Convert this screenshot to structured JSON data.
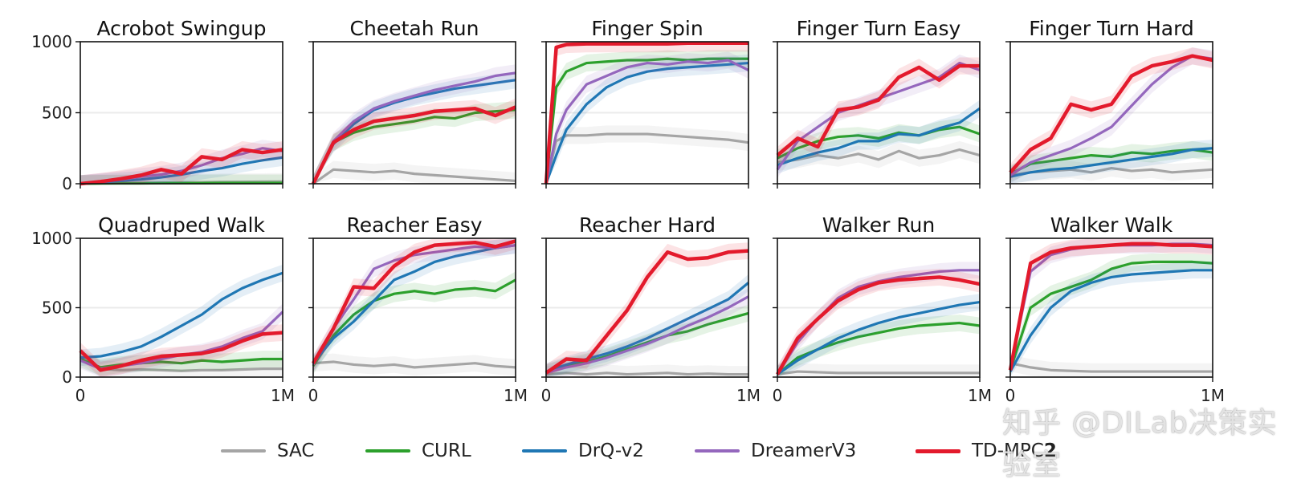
{
  "watermark": "知乎 @DILab决策实验室",
  "legend": [
    {
      "label": "SAC",
      "color": "#a5a5a5"
    },
    {
      "label": "CURL",
      "color": "#2ca02c"
    },
    {
      "label": "DrQ-v2",
      "color": "#1f77b4"
    },
    {
      "label": "DreamerV3",
      "color": "#9467bd"
    },
    {
      "label": "TD-MPC",
      "bold_suffix": "2",
      "color": "#e31a2c"
    }
  ],
  "chart_data": [
    {
      "type": "line",
      "title": "Acrobot Swingup",
      "ylim": [
        0,
        1000
      ],
      "yticks": [
        0,
        500,
        1000
      ],
      "x": [
        0,
        0.1,
        0.2,
        0.3,
        0.4,
        0.5,
        0.6,
        0.7,
        0.8,
        0.9,
        1.0
      ],
      "series": [
        {
          "name": "SAC",
          "values": [
            0,
            3,
            5,
            6,
            8,
            9,
            10,
            12,
            13,
            14,
            15
          ]
        },
        {
          "name": "CURL",
          "values": [
            0,
            2,
            3,
            3,
            4,
            4,
            4,
            5,
            5,
            5,
            5
          ]
        },
        {
          "name": "DrQ-v2",
          "values": [
            0,
            10,
            20,
            30,
            45,
            65,
            90,
            110,
            140,
            165,
            185
          ]
        },
        {
          "name": "DreamerV3",
          "values": [
            0,
            15,
            30,
            50,
            65,
            90,
            130,
            180,
            210,
            250,
            230
          ]
        },
        {
          "name": "TD-MPC2",
          "values": [
            0,
            15,
            35,
            60,
            100,
            70,
            190,
            170,
            240,
            220,
            240
          ]
        }
      ]
    },
    {
      "type": "line",
      "title": "Cheetah Run",
      "ylim": [
        0,
        1000
      ],
      "yticks": [
        0,
        500,
        1000
      ],
      "x": [
        0,
        0.1,
        0.2,
        0.3,
        0.4,
        0.5,
        0.6,
        0.7,
        0.8,
        0.9,
        1.0
      ],
      "series": [
        {
          "name": "SAC",
          "values": [
            0,
            100,
            90,
            80,
            90,
            70,
            60,
            50,
            40,
            30,
            20
          ]
        },
        {
          "name": "CURL",
          "values": [
            0,
            290,
            360,
            400,
            420,
            440,
            470,
            460,
            500,
            510,
            520
          ]
        },
        {
          "name": "DrQ-v2",
          "values": [
            0,
            280,
            420,
            520,
            570,
            610,
            640,
            670,
            690,
            710,
            730
          ]
        },
        {
          "name": "DreamerV3",
          "values": [
            0,
            300,
            440,
            530,
            580,
            620,
            660,
            690,
            720,
            760,
            780
          ]
        },
        {
          "name": "TD-MPC2",
          "values": [
            0,
            290,
            380,
            440,
            460,
            480,
            510,
            520,
            530,
            480,
            540
          ]
        }
      ]
    },
    {
      "type": "line",
      "title": "Finger Spin",
      "ylim": [
        0,
        1000
      ],
      "yticks": [
        0,
        500,
        1000
      ],
      "x": [
        0,
        0.05,
        0.1,
        0.2,
        0.3,
        0.4,
        0.5,
        0.6,
        0.7,
        0.8,
        0.9,
        1.0
      ],
      "series": [
        {
          "name": "SAC",
          "values": [
            0,
            300,
            340,
            340,
            350,
            350,
            350,
            340,
            330,
            320,
            310,
            290
          ]
        },
        {
          "name": "CURL",
          "values": [
            0,
            680,
            790,
            850,
            860,
            870,
            870,
            880,
            870,
            880,
            880,
            880
          ]
        },
        {
          "name": "DrQ-v2",
          "values": [
            0,
            200,
            380,
            560,
            680,
            750,
            790,
            810,
            820,
            830,
            840,
            850
          ]
        },
        {
          "name": "DreamerV3",
          "values": [
            0,
            350,
            520,
            700,
            760,
            820,
            850,
            840,
            860,
            850,
            870,
            800
          ]
        },
        {
          "name": "TD-MPC2",
          "values": [
            0,
            960,
            980,
            985,
            985,
            985,
            985,
            985,
            990,
            990,
            990,
            990
          ]
        }
      ]
    },
    {
      "type": "line",
      "title": "Finger Turn Easy",
      "ylim": [
        0,
        1000
      ],
      "yticks": [
        0,
        500,
        1000
      ],
      "x": [
        0,
        0.1,
        0.2,
        0.3,
        0.4,
        0.5,
        0.6,
        0.7,
        0.8,
        0.9,
        1.0
      ],
      "series": [
        {
          "name": "SAC",
          "values": [
            150,
            170,
            200,
            180,
            210,
            170,
            230,
            180,
            200,
            240,
            200
          ]
        },
        {
          "name": "CURL",
          "values": [
            180,
            250,
            300,
            330,
            340,
            320,
            360,
            340,
            380,
            400,
            350
          ]
        },
        {
          "name": "DrQ-v2",
          "values": [
            130,
            180,
            220,
            250,
            300,
            300,
            350,
            340,
            390,
            430,
            530
          ]
        },
        {
          "name": "DreamerV3",
          "values": [
            100,
            300,
            400,
            500,
            550,
            600,
            650,
            700,
            750,
            850,
            800
          ]
        },
        {
          "name": "TD-MPC2",
          "values": [
            200,
            320,
            260,
            520,
            540,
            590,
            750,
            820,
            730,
            830,
            830
          ]
        }
      ]
    },
    {
      "type": "line",
      "title": "Finger Turn Hard",
      "ylim": [
        0,
        1000
      ],
      "yticks": [
        0,
        500,
        1000
      ],
      "x": [
        0,
        0.1,
        0.2,
        0.3,
        0.4,
        0.5,
        0.6,
        0.7,
        0.8,
        0.9,
        1.0
      ],
      "series": [
        {
          "name": "SAC",
          "values": [
            60,
            80,
            90,
            100,
            80,
            110,
            90,
            100,
            80,
            90,
            100
          ]
        },
        {
          "name": "CURL",
          "values": [
            70,
            140,
            160,
            180,
            200,
            190,
            220,
            210,
            230,
            240,
            220
          ]
        },
        {
          "name": "DrQ-v2",
          "values": [
            50,
            80,
            100,
            110,
            130,
            150,
            170,
            190,
            210,
            240,
            250
          ]
        },
        {
          "name": "DreamerV3",
          "values": [
            60,
            150,
            200,
            250,
            320,
            400,
            550,
            700,
            820,
            900,
            880
          ]
        },
        {
          "name": "TD-MPC2",
          "values": [
            80,
            240,
            320,
            560,
            520,
            560,
            760,
            830,
            860,
            900,
            870
          ]
        }
      ]
    },
    {
      "type": "line",
      "title": "Quadruped Walk",
      "ylim": [
        0,
        1000
      ],
      "yticks": [
        0,
        500,
        1000
      ],
      "x": [
        0,
        0.1,
        0.2,
        0.3,
        0.4,
        0.5,
        0.6,
        0.7,
        0.8,
        0.9,
        1.0
      ],
      "series": [
        {
          "name": "SAC",
          "values": [
            150,
            60,
            50,
            55,
            50,
            45,
            50,
            50,
            55,
            60,
            60
          ]
        },
        {
          "name": "CURL",
          "values": [
            130,
            70,
            90,
            100,
            110,
            100,
            120,
            110,
            120,
            130,
            130
          ]
        },
        {
          "name": "DrQ-v2",
          "values": [
            140,
            150,
            180,
            220,
            290,
            370,
            450,
            560,
            640,
            700,
            750
          ]
        },
        {
          "name": "DreamerV3",
          "values": [
            120,
            60,
            80,
            100,
            130,
            160,
            180,
            220,
            280,
            330,
            470
          ]
        },
        {
          "name": "TD-MPC2",
          "values": [
            190,
            50,
            80,
            120,
            150,
            160,
            170,
            200,
            260,
            310,
            320
          ]
        }
      ]
    },
    {
      "type": "line",
      "title": "Reacher Easy",
      "ylim": [
        0,
        1000
      ],
      "yticks": [
        0,
        500,
        1000
      ],
      "x": [
        0,
        0.1,
        0.2,
        0.3,
        0.4,
        0.5,
        0.6,
        0.7,
        0.8,
        0.9,
        1.0
      ],
      "series": [
        {
          "name": "SAC",
          "values": [
            100,
            110,
            90,
            80,
            90,
            70,
            80,
            90,
            100,
            80,
            70
          ]
        },
        {
          "name": "CURL",
          "values": [
            80,
            300,
            450,
            550,
            600,
            620,
            600,
            630,
            640,
            620,
            700
          ]
        },
        {
          "name": "DrQ-v2",
          "values": [
            100,
            280,
            400,
            550,
            700,
            760,
            830,
            870,
            900,
            930,
            950
          ]
        },
        {
          "name": "DreamerV3",
          "values": [
            90,
            350,
            560,
            780,
            840,
            880,
            900,
            920,
            940,
            930,
            950
          ]
        },
        {
          "name": "TD-MPC2",
          "values": [
            100,
            350,
            650,
            640,
            800,
            900,
            950,
            960,
            970,
            940,
            980
          ]
        }
      ]
    },
    {
      "type": "line",
      "title": "Reacher Hard",
      "ylim": [
        0,
        1000
      ],
      "yticks": [
        0,
        500,
        1000
      ],
      "x": [
        0,
        0.1,
        0.2,
        0.3,
        0.4,
        0.5,
        0.6,
        0.7,
        0.8,
        0.9,
        1.0
      ],
      "series": [
        {
          "name": "SAC",
          "values": [
            20,
            30,
            20,
            30,
            20,
            25,
            30,
            20,
            25,
            20,
            20
          ]
        },
        {
          "name": "CURL",
          "values": [
            30,
            80,
            110,
            150,
            200,
            250,
            300,
            330,
            380,
            420,
            460
          ]
        },
        {
          "name": "DrQ-v2",
          "values": [
            40,
            90,
            130,
            170,
            220,
            280,
            350,
            420,
            490,
            560,
            680
          ]
        },
        {
          "name": "DreamerV3",
          "values": [
            30,
            70,
            100,
            140,
            190,
            240,
            300,
            370,
            430,
            500,
            580
          ]
        },
        {
          "name": "TD-MPC2",
          "values": [
            30,
            130,
            120,
            300,
            480,
            720,
            900,
            850,
            860,
            900,
            910
          ]
        }
      ]
    },
    {
      "type": "line",
      "title": "Walker Run",
      "ylim": [
        0,
        1000
      ],
      "yticks": [
        0,
        500,
        1000
      ],
      "x": [
        0,
        0.1,
        0.2,
        0.3,
        0.4,
        0.5,
        0.6,
        0.7,
        0.8,
        0.9,
        1.0
      ],
      "series": [
        {
          "name": "SAC",
          "values": [
            20,
            40,
            35,
            30,
            30,
            30,
            30,
            30,
            30,
            30,
            30
          ]
        },
        {
          "name": "CURL",
          "values": [
            20,
            140,
            200,
            250,
            290,
            320,
            350,
            370,
            380,
            390,
            370
          ]
        },
        {
          "name": "DrQ-v2",
          "values": [
            20,
            120,
            200,
            280,
            340,
            390,
            430,
            460,
            490,
            520,
            540
          ]
        },
        {
          "name": "DreamerV3",
          "values": [
            20,
            250,
            420,
            570,
            650,
            690,
            720,
            740,
            760,
            770,
            770
          ]
        },
        {
          "name": "TD-MPC2",
          "values": [
            20,
            280,
            420,
            550,
            630,
            680,
            700,
            710,
            720,
            700,
            670
          ]
        }
      ]
    },
    {
      "type": "line",
      "title": "Walker Walk",
      "ylim": [
        0,
        1000
      ],
      "yticks": [
        0,
        500,
        1000
      ],
      "x": [
        0,
        0.1,
        0.2,
        0.3,
        0.4,
        0.5,
        0.6,
        0.7,
        0.8,
        0.9,
        1.0
      ],
      "series": [
        {
          "name": "SAC",
          "values": [
            100,
            70,
            50,
            45,
            40,
            40,
            40,
            40,
            40,
            40,
            40
          ]
        },
        {
          "name": "CURL",
          "values": [
            50,
            500,
            600,
            650,
            700,
            780,
            820,
            830,
            830,
            830,
            820
          ]
        },
        {
          "name": "DrQ-v2",
          "values": [
            40,
            300,
            500,
            620,
            680,
            720,
            740,
            750,
            760,
            770,
            770
          ]
        },
        {
          "name": "DreamerV3",
          "values": [
            60,
            760,
            880,
            920,
            940,
            950,
            950,
            950,
            960,
            960,
            950
          ]
        },
        {
          "name": "TD-MPC2",
          "values": [
            50,
            820,
            900,
            930,
            940,
            950,
            960,
            960,
            950,
            950,
            940
          ]
        }
      ]
    }
  ],
  "x_tick_labels": [
    "0",
    "1M"
  ]
}
